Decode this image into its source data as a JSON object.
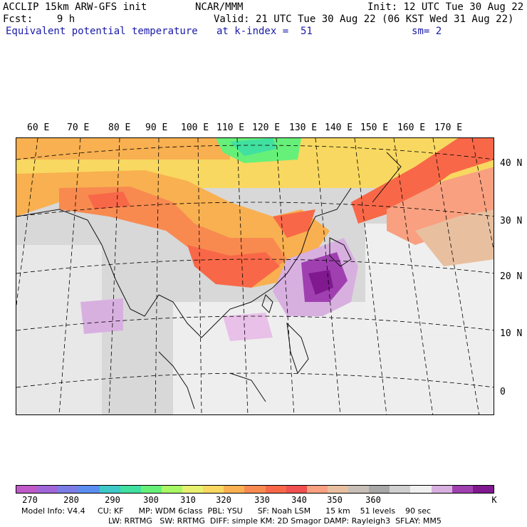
{
  "header": {
    "model": "ACCLIP 15km ARW-GFS init",
    "org": "NCAR/MMM",
    "init": "Init: 12 UTC Tue 30 Aug 22",
    "fcst": "Fcst:    9 h",
    "valid": "Valid: 21 UTC Tue 30 Aug 22 (06 KST Wed 31 Aug 22)",
    "field": "Equivalent potential temperature",
    "level": "at k-index =  51",
    "smooth": "sm= 2"
  },
  "lon_labels": [
    "60 E",
    "70 E",
    "80 E",
    "90 E",
    "100 E",
    "110 E",
    "120 E",
    "130 E",
    "140 E",
    "150 E",
    "160 E",
    "170 E"
  ],
  "lat_labels": [
    "40 N",
    "30 N",
    "20 N",
    "10 N",
    "0"
  ],
  "colorbar": {
    "colors": [
      "#c05ac8",
      "#a066d8",
      "#7c7ce6",
      "#5a8ef0",
      "#3ec8c8",
      "#40e0a0",
      "#66f07a",
      "#a8f866",
      "#e8f070",
      "#f8d860",
      "#f8b050",
      "#f88a50",
      "#f86848",
      "#f05050",
      "#f8a080",
      "#e8c0a0",
      "#c8c0b8",
      "#a8a8a8",
      "#d0d0d0",
      "#f0f0f0",
      "#d8b0e0",
      "#a040b0",
      "#801890"
    ],
    "tick_labels": [
      "270",
      "280",
      "290",
      "300",
      "310",
      "320",
      "330",
      "340",
      "350",
      "360"
    ],
    "unit": "K"
  },
  "footer": {
    "line1": "Model Info: V4.4     CU: KF      MP: WDM 6class  PBL: YSU      SF: Noah LSM      15 km    51 levels    90 sec",
    "line2": "LW: RRTMG   SW: RRTMG  DIFF: simple KM: 2D Smagor DAMP: Rayleigh3  SFLAY: MM5"
  }
}
